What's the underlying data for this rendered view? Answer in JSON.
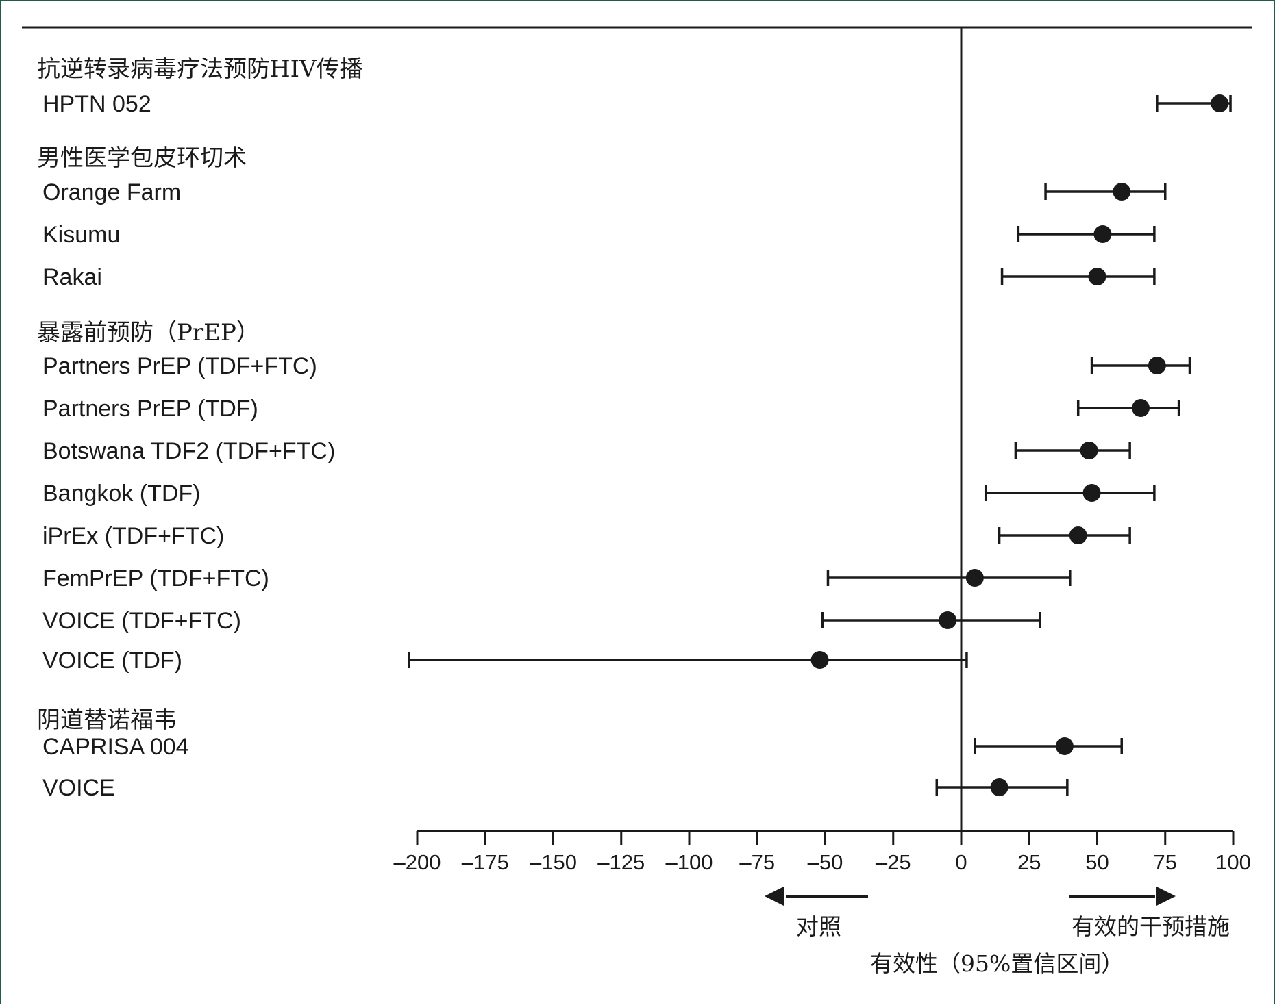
{
  "chart_data": {
    "type": "forest",
    "title": "",
    "xlabel": "有效性（95%置信区间）",
    "ylabel": "",
    "xlim": [
      -200,
      100
    ],
    "xticks": [
      -200,
      -175,
      -150,
      -125,
      -100,
      -75,
      -50,
      -25,
      0,
      25,
      50,
      75,
      100
    ],
    "tick_labels": [
      "–200",
      "–175",
      "–150",
      "–125",
      "–100",
      "–75",
      "–50",
      "–25",
      "0",
      "25",
      "50",
      "75",
      "100"
    ],
    "reference_line": 0,
    "arrows": {
      "left_label": "对照",
      "right_label": "有效的干预措施"
    },
    "groups": [
      {
        "heading": "抗逆转录病毒疗法预防HIV传播",
        "studies": [
          {
            "name": "HPTN 052",
            "estimate": 95,
            "ci_low": 72,
            "ci_high": 99
          }
        ]
      },
      {
        "heading": "男性医学包皮环切术",
        "studies": [
          {
            "name": "Orange Farm",
            "estimate": 59,
            "ci_low": 31,
            "ci_high": 75
          },
          {
            "name": "Kisumu",
            "estimate": 52,
            "ci_low": 21,
            "ci_high": 71
          },
          {
            "name": "Rakai",
            "estimate": 50,
            "ci_low": 15,
            "ci_high": 71
          }
        ]
      },
      {
        "heading": "暴露前预防（PrEP）",
        "studies": [
          {
            "name": "Partners PrEP (TDF+FTC)",
            "estimate": 72,
            "ci_low": 48,
            "ci_high": 84
          },
          {
            "name": "Partners PrEP (TDF)",
            "estimate": 66,
            "ci_low": 43,
            "ci_high": 80
          },
          {
            "name": "Botswana TDF2 (TDF+FTC)",
            "estimate": 47,
            "ci_low": 20,
            "ci_high": 62
          },
          {
            "name": "Bangkok (TDF)",
            "estimate": 48,
            "ci_low": 9,
            "ci_high": 71
          },
          {
            "name": "iPrEx (TDF+FTC)",
            "estimate": 43,
            "ci_low": 14,
            "ci_high": 62
          },
          {
            "name": "FemPrEP (TDF+FTC)",
            "estimate": 5,
            "ci_low": -49,
            "ci_high": 40
          },
          {
            "name": "VOICE (TDF+FTC)",
            "estimate": -5,
            "ci_low": -51,
            "ci_high": 29
          },
          {
            "name": "VOICE (TDF)",
            "estimate": -52,
            "ci_low": -203,
            "ci_high": 2
          }
        ]
      },
      {
        "heading": "阴道替诺福韦",
        "studies": [
          {
            "name": "CAPRISA 004",
            "estimate": 38,
            "ci_low": 5,
            "ci_high": 59
          },
          {
            "name": "VOICE",
            "estimate": 14,
            "ci_low": -9,
            "ci_high": 39
          }
        ]
      }
    ]
  }
}
